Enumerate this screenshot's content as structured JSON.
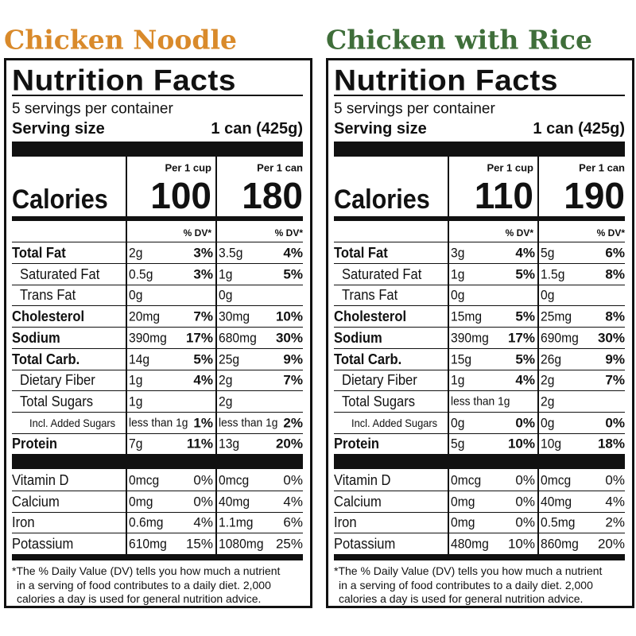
{
  "panels": [
    {
      "title": "Chicken Noodle",
      "heading": "Nutrition Facts",
      "servings": "5 servings per container",
      "serving_size_label": "Serving size",
      "serving_size": "1 can (425g)",
      "calories_label": "Calories",
      "columns": [
        {
          "header": "Per 1 cup",
          "calories": "100",
          "dv_header": "% DV*"
        },
        {
          "header": "Per 1 can",
          "calories": "180",
          "dv_header": "% DV*"
        }
      ],
      "nutrients": [
        {
          "name": "Total Fat",
          "cup": "2g",
          "cup_dv": "3%",
          "can": "3.5g",
          "can_dv": "4%"
        },
        {
          "name": "Saturated Fat",
          "cup": "0.5g",
          "cup_dv": "3%",
          "can": "1g",
          "can_dv": "5%"
        },
        {
          "name": "Trans Fat",
          "cup": "0g",
          "can": "0g"
        },
        {
          "name": "Cholesterol",
          "cup": "20mg",
          "cup_dv": "7%",
          "can": "30mg",
          "can_dv": "10%"
        },
        {
          "name": "Sodium",
          "cup": "390mg",
          "cup_dv": "17%",
          "can": "680mg",
          "can_dv": "30%"
        },
        {
          "name": "Total Carb.",
          "cup": "14g",
          "cup_dv": "5%",
          "can": "25g",
          "can_dv": "9%"
        },
        {
          "name": "Dietary Fiber",
          "cup": "1g",
          "cup_dv": "4%",
          "can": "2g",
          "can_dv": "7%"
        },
        {
          "name": "Total Sugars",
          "cup": "1g",
          "can": "2g"
        },
        {
          "name": "Incl. Added Sugars",
          "cup": "less than 1g",
          "cup_dv": "1%",
          "can": "less than 1g",
          "can_dv": "2%"
        },
        {
          "name": "Protein",
          "cup": "7g",
          "cup_dv": "11%",
          "can": "13g",
          "can_dv": "20%"
        }
      ],
      "vitamins": [
        {
          "name": "Vitamin D",
          "cup": "0mcg",
          "cup_dv": "0%",
          "can": "0mcg",
          "can_dv": "0%"
        },
        {
          "name": "Calcium",
          "cup": "0mg",
          "cup_dv": "0%",
          "can": "40mg",
          "can_dv": "4%"
        },
        {
          "name": "Iron",
          "cup": "0.6mg",
          "cup_dv": "4%",
          "can": "1.1mg",
          "can_dv": "6%"
        },
        {
          "name": "Potassium",
          "cup": "610mg",
          "cup_dv": "15%",
          "can": "1080mg",
          "can_dv": "25%"
        }
      ],
      "footnote": [
        "*The % Daily Value (DV) tells you how much a nutrient",
        "in a serving of food contributes to a daily diet. 2,000",
        "calories a day is used for general nutrition advice."
      ]
    },
    {
      "title": "Chicken with Rice",
      "heading": "Nutrition Facts",
      "servings": "5 servings per container",
      "serving_size_label": "Serving size",
      "serving_size": "1 can (425g)",
      "calories_label": "Calories",
      "columns": [
        {
          "header": "Per 1 cup",
          "calories": "110",
          "dv_header": "% DV*"
        },
        {
          "header": "Per 1 can",
          "calories": "190",
          "dv_header": "% DV*"
        }
      ],
      "nutrients": [
        {
          "name": "Total Fat",
          "cup": "3g",
          "cup_dv": "4%",
          "can": "5g",
          "can_dv": "6%"
        },
        {
          "name": "Saturated Fat",
          "cup": "1g",
          "cup_dv": "5%",
          "can": "1.5g",
          "can_dv": "8%"
        },
        {
          "name": "Trans Fat",
          "cup": "0g",
          "can": "0g"
        },
        {
          "name": "Cholesterol",
          "cup": "15mg",
          "cup_dv": "5%",
          "can": "25mg",
          "can_dv": "8%"
        },
        {
          "name": "Sodium",
          "cup": "390mg",
          "cup_dv": "17%",
          "can": "690mg",
          "can_dv": "30%"
        },
        {
          "name": "Total Carb.",
          "cup": "15g",
          "cup_dv": "5%",
          "can": "26g",
          "can_dv": "9%"
        },
        {
          "name": "Dietary Fiber",
          "cup": "1g",
          "cup_dv": "4%",
          "can": "2g",
          "can_dv": "7%"
        },
        {
          "name": "Total Sugars",
          "cup": "less than 1g",
          "can": "2g"
        },
        {
          "name": "Incl. Added Sugars",
          "cup": "0g",
          "cup_dv": "0%",
          "can": "0g",
          "can_dv": "0%"
        },
        {
          "name": "Protein",
          "cup": "5g",
          "cup_dv": "10%",
          "can": "10g",
          "can_dv": "18%"
        }
      ],
      "vitamins": [
        {
          "name": "Vitamin D",
          "cup": "0mcg",
          "cup_dv": "0%",
          "can": "0mcg",
          "can_dv": "0%"
        },
        {
          "name": "Calcium",
          "cup": "0mg",
          "cup_dv": "0%",
          "can": "40mg",
          "can_dv": "4%"
        },
        {
          "name": "Iron",
          "cup": "0mg",
          "cup_dv": "0%",
          "can": "0.5mg",
          "can_dv": "2%"
        },
        {
          "name": "Potassium",
          "cup": "480mg",
          "cup_dv": "10%",
          "can": "860mg",
          "can_dv": "20%"
        }
      ],
      "footnote": [
        "*The % Daily Value (DV) tells you how much a nutrient",
        "in a serving of food contributes to a daily diet. 2,000",
        "calories a day is used for general nutrition advice."
      ]
    }
  ]
}
